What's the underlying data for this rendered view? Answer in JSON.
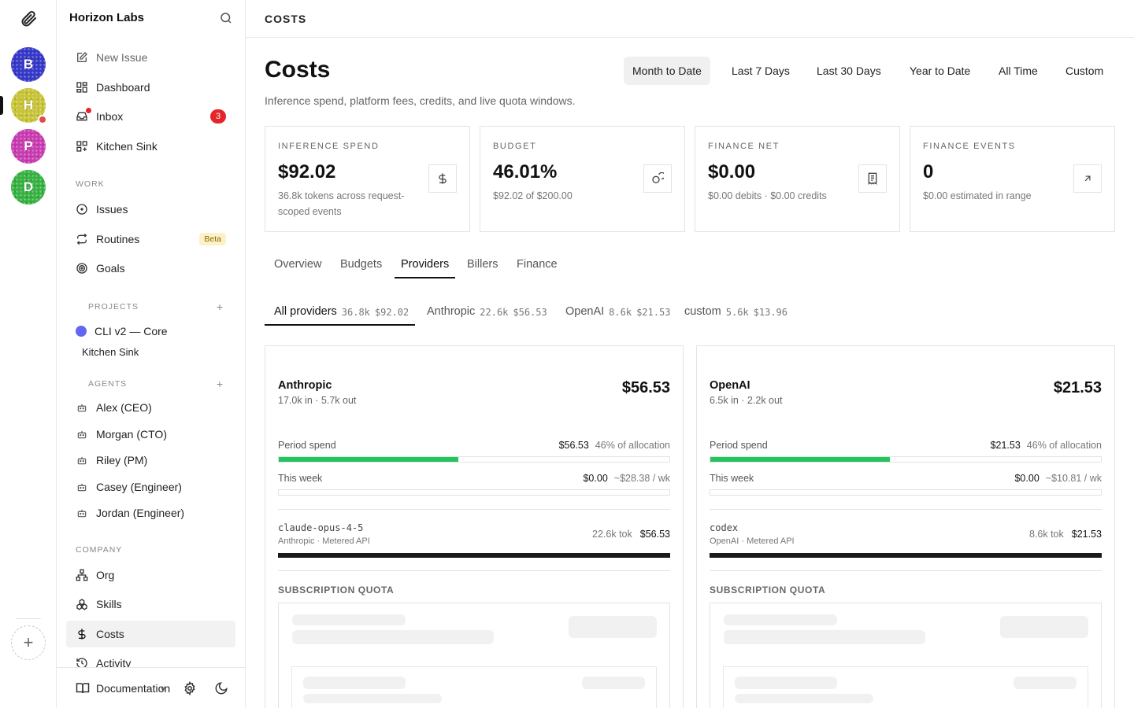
{
  "rail": {
    "workspaces": [
      {
        "letter": "B",
        "color": "#3538c9"
      },
      {
        "letter": "H",
        "color": "#c9c436"
      },
      {
        "letter": "P",
        "color": "#c93bb1"
      },
      {
        "letter": "D",
        "color": "#35b241"
      }
    ],
    "add_label": "+"
  },
  "sidebar": {
    "title": "Horizon Labs",
    "nav": [
      {
        "label": "New Issue",
        "icon": "edit-icon"
      },
      {
        "label": "Dashboard",
        "icon": "dashboard-icon"
      },
      {
        "label": "Inbox",
        "icon": "inbox-icon",
        "badge": "3"
      },
      {
        "label": "Kitchen Sink",
        "icon": "kitchen-sink-icon"
      }
    ],
    "work_label": "WORK",
    "work": [
      {
        "label": "Issues",
        "icon": "circle-dot-icon"
      },
      {
        "label": "Routines",
        "icon": "repeat-icon",
        "badge": "Beta"
      },
      {
        "label": "Goals",
        "icon": "target-icon"
      }
    ],
    "projects_label": "PROJECTS",
    "projects": [
      {
        "label": "CLI v2 — Core",
        "color": "#6366f1"
      },
      {
        "label": "Kitchen Sink"
      }
    ],
    "agents_label": "AGENTS",
    "agents": [
      "Alex (CEO)",
      "Morgan (CTO)",
      "Riley (PM)",
      "Casey (Engineer)",
      "Jordan (Engineer)"
    ],
    "company_label": "COMPANY",
    "company": [
      {
        "label": "Org",
        "icon": "org-icon"
      },
      {
        "label": "Skills",
        "icon": "skills-icon"
      },
      {
        "label": "Costs",
        "icon": "dollar-icon",
        "active": true
      },
      {
        "label": "Activity",
        "icon": "history-icon"
      }
    ],
    "footer": {
      "docs": "Documentation",
      "version": "v"
    }
  },
  "main": {
    "breadcrumb": "COSTS",
    "title": "Costs",
    "subtitle": "Inference spend, platform fees, credits, and live quota windows.",
    "ranges": [
      "Month to Date",
      "Last 7 Days",
      "Last 30 Days",
      "Year to Date",
      "All Time",
      "Custom"
    ],
    "active_range": "Month to Date",
    "stats": [
      {
        "label": "INFERENCE SPEND",
        "value": "$92.02",
        "sub": "36.8k tokens across request-scoped events",
        "icon": "dollar-icon"
      },
      {
        "label": "BUDGET",
        "value": "46.01%",
        "sub": "$92.02 of $200.00",
        "icon": "coins-icon"
      },
      {
        "label": "FINANCE NET",
        "value": "$0.00",
        "sub": "$0.00 debits · $0.00 credits",
        "icon": "receipt-icon"
      },
      {
        "label": "FINANCE EVENTS",
        "value": "0",
        "sub": "$0.00 estimated in range",
        "icon": "arrow-up-right-icon"
      }
    ],
    "tabs": [
      "Overview",
      "Budgets",
      "Providers",
      "Billers",
      "Finance"
    ],
    "active_tab": "Providers",
    "provider_tabs": [
      {
        "name": "All providers",
        "tokens": "36.8k",
        "cost": "$92.02"
      },
      {
        "name": "Anthropic",
        "tokens": "22.6k",
        "cost": "$56.53"
      },
      {
        "name": "OpenAI",
        "tokens": "8.6k",
        "cost": "$21.53"
      },
      {
        "name": "custom",
        "tokens": "5.6k",
        "cost": "$13.96"
      }
    ],
    "cards": [
      {
        "name": "Anthropic",
        "io": "17.0k in · 5.7k out",
        "total": "$56.53",
        "period_label": "Period spend",
        "period_value": "$56.53",
        "period_note": "46% of allocation",
        "period_fraction": 0.46,
        "week_label": "This week",
        "week_value": "$0.00",
        "week_note": "~$28.38 / wk",
        "week_fraction": 0,
        "model": "claude-opus-4-5",
        "model_sub": "Anthropic · Metered API",
        "model_tokens": "22.6k tok",
        "model_cost": "$56.53",
        "quota_label": "SUBSCRIPTION QUOTA"
      },
      {
        "name": "OpenAI",
        "io": "6.5k in · 2.2k out",
        "total": "$21.53",
        "period_label": "Period spend",
        "period_value": "$21.53",
        "period_note": "46% of allocation",
        "period_fraction": 0.46,
        "week_label": "This week",
        "week_value": "$0.00",
        "week_note": "~$10.81 / wk",
        "week_fraction": 0,
        "model": "codex",
        "model_sub": "OpenAI · Metered API",
        "model_tokens": "8.6k tok",
        "model_cost": "$21.53",
        "quota_label": "SUBSCRIPTION QUOTA"
      }
    ]
  }
}
